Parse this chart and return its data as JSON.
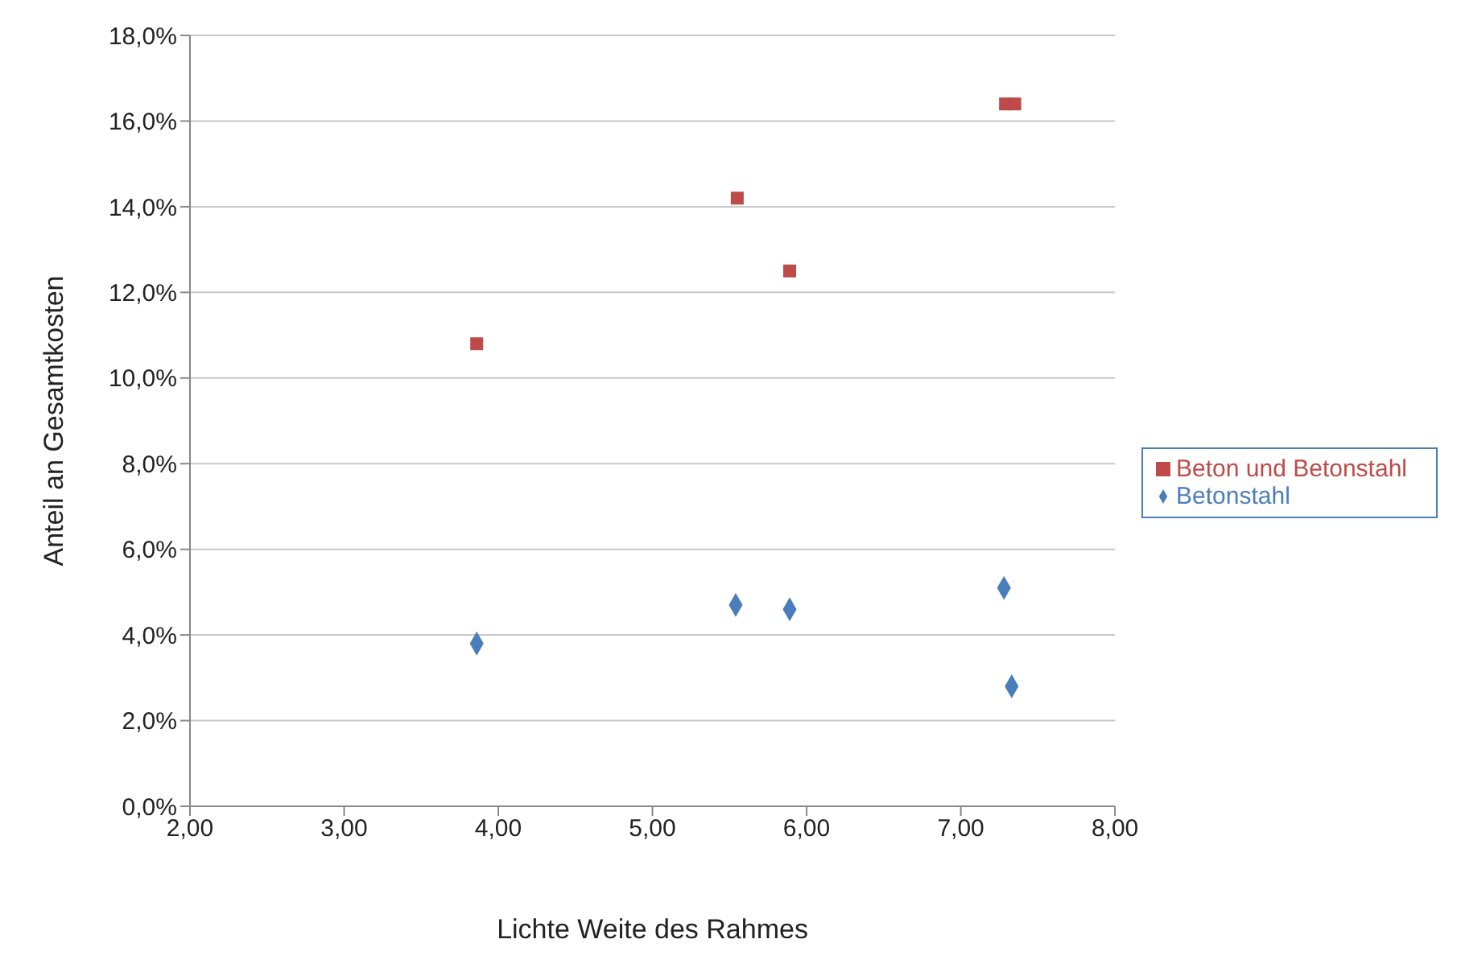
{
  "chart_data": {
    "type": "scatter",
    "xlabel": "Lichte Weite des Rahmes",
    "ylabel": "Anteil an Gesamtkosten",
    "xlim": [
      2,
      8
    ],
    "xticks": [
      {
        "value": 2,
        "label": "2,00"
      },
      {
        "value": 3,
        "label": "3,00"
      },
      {
        "value": 4,
        "label": "4,00"
      },
      {
        "value": 5,
        "label": "5,00"
      },
      {
        "value": 6,
        "label": "6,00"
      },
      {
        "value": 7,
        "label": "7,00"
      },
      {
        "value": 8,
        "label": "8,00"
      }
    ],
    "ylim": [
      0,
      18
    ],
    "yticks": [
      {
        "value": 0,
        "label": "0,0%"
      },
      {
        "value": 2,
        "label": "2,0%"
      },
      {
        "value": 4,
        "label": "4,0%"
      },
      {
        "value": 6,
        "label": "6,0%"
      },
      {
        "value": 8,
        "label": "8,0%"
      },
      {
        "value": 10,
        "label": "10,0%"
      },
      {
        "value": 12,
        "label": "12,0%"
      },
      {
        "value": 14,
        "label": "14,0%"
      },
      {
        "value": 16,
        "label": "16,0%"
      },
      {
        "value": 18,
        "label": "18,0%"
      }
    ],
    "grid": "y",
    "legend": "right",
    "series": [
      {
        "name": "Betonstahl",
        "color": "#4a7ebb",
        "marker": "diamond",
        "x": [
          3.86,
          5.54,
          5.89,
          7.28,
          7.33
        ],
        "values": [
          3.8,
          4.7,
          4.6,
          5.1,
          2.8
        ]
      },
      {
        "name": "Beton und Betonstahl",
        "color": "#be4b48",
        "marker": "square",
        "x": [
          3.86,
          5.55,
          5.89,
          7.29,
          7.35
        ],
        "values": [
          10.8,
          14.2,
          12.5,
          16.4,
          16.4
        ]
      }
    ]
  }
}
